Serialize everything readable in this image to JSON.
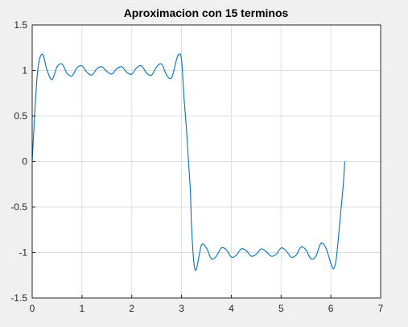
{
  "chart_data": {
    "type": "line",
    "title": "Aproximacion con 15 terminos",
    "xlabel": "",
    "ylabel": "",
    "xlim": [
      0,
      7
    ],
    "ylim": [
      -1.5,
      1.5
    ],
    "xticks": [
      0,
      1,
      2,
      3,
      4,
      5,
      6,
      7
    ],
    "xtick_labels": [
      "0",
      "1",
      "2",
      "3",
      "4",
      "5",
      "6",
      "7"
    ],
    "yticks": [
      1.5,
      1,
      0.5,
      0,
      -0.5,
      -1,
      -1.5
    ],
    "ytick_labels": [
      "1.5",
      "1",
      "0.5",
      "0",
      "-0.5",
      "-1",
      "-1.5"
    ],
    "grid": true,
    "legend": "none",
    "series": [
      {
        "color": "#0072BD",
        "x": [
          0,
          0.1,
          0.2,
          0.3,
          0.4,
          0.5,
          0.6,
          0.7,
          0.8,
          0.9,
          1.0,
          1.1,
          1.2,
          1.3,
          1.4,
          1.5,
          1.6,
          1.7,
          1.8,
          1.9,
          2.0,
          2.1,
          2.2,
          2.3,
          2.4,
          2.5,
          2.6,
          2.7,
          2.8,
          2.9,
          2.95,
          3.0,
          3.05,
          3.1,
          3.14,
          3.18,
          3.2,
          3.25,
          3.3,
          3.4,
          3.5,
          3.6,
          3.7,
          3.8,
          3.9,
          4.0,
          4.1,
          4.2,
          4.3,
          4.4,
          4.5,
          4.6,
          4.7,
          4.8,
          4.9,
          5.0,
          5.1,
          5.2,
          5.3,
          5.4,
          5.5,
          5.6,
          5.7,
          5.8,
          5.9,
          6.0,
          6.05,
          6.1,
          6.15,
          6.2,
          6.25,
          6.28
        ],
        "y": [
          0,
          0.94,
          1.18,
          1.0,
          0.9,
          1.04,
          1.07,
          0.97,
          0.94,
          1.03,
          1.05,
          0.98,
          0.95,
          1.02,
          1.04,
          0.99,
          0.96,
          1.02,
          1.04,
          0.98,
          0.96,
          1.03,
          1.05,
          0.97,
          0.95,
          1.04,
          1.07,
          0.95,
          0.92,
          1.12,
          1.18,
          1.12,
          0.7,
          0.35,
          0,
          -0.35,
          -0.7,
          -1.12,
          -1.18,
          -0.92,
          -0.95,
          -1.07,
          -1.04,
          -0.95,
          -0.97,
          -1.05,
          -1.03,
          -0.96,
          -0.98,
          -1.04,
          -1.02,
          -0.96,
          -0.99,
          -1.04,
          -1.02,
          -0.95,
          -0.98,
          -1.05,
          -1.03,
          -0.94,
          -0.97,
          -1.07,
          -1.04,
          -0.9,
          -0.95,
          -1.12,
          -1.18,
          -1.1,
          -0.85,
          -0.55,
          -0.25,
          0
        ]
      }
    ]
  }
}
